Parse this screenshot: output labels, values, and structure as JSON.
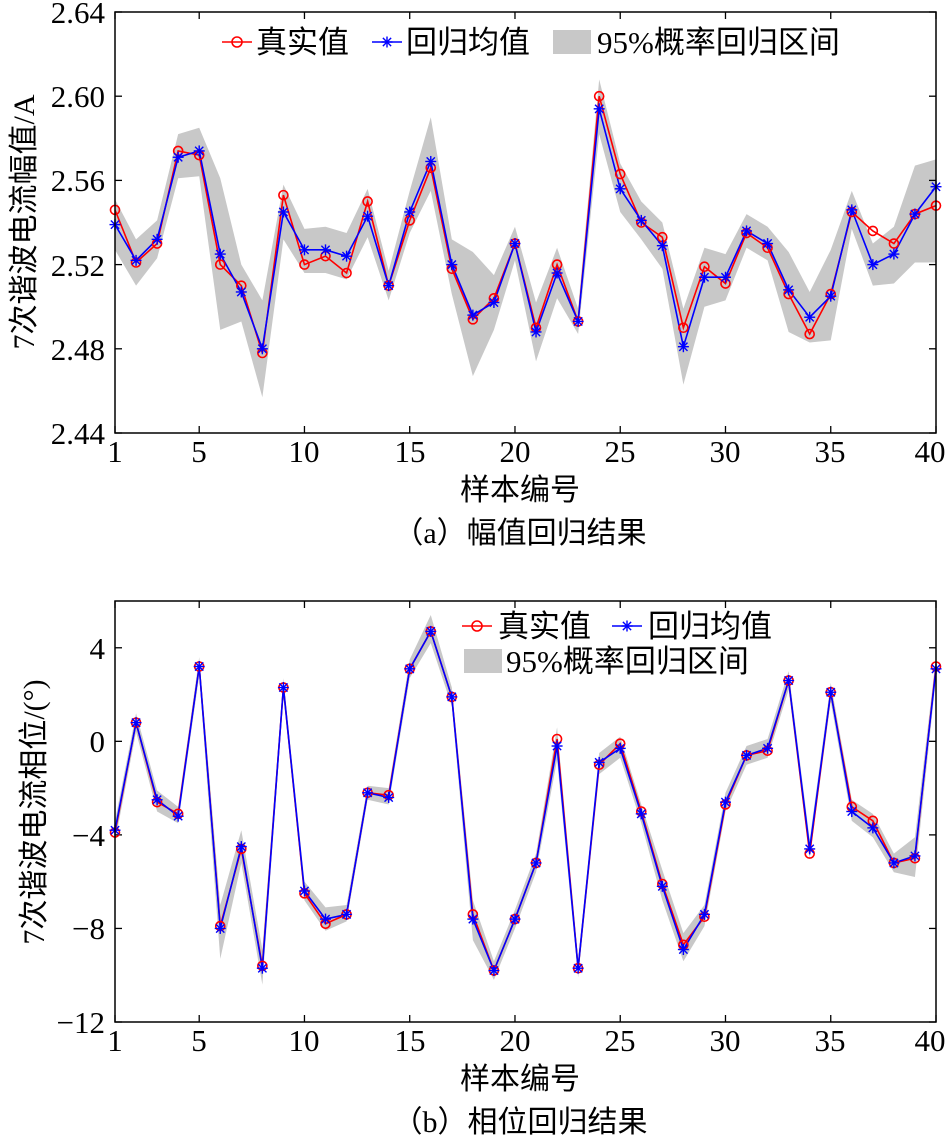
{
  "chart_data": [
    {
      "type": "line",
      "ylabel": "7次谐波电流幅值/A",
      "xlabel": "样本编号",
      "caption": "（a）幅值回归结果",
      "xlim": [
        1,
        40
      ],
      "ylim": [
        2.44,
        2.64
      ],
      "xticks": [
        1,
        5,
        10,
        15,
        20,
        25,
        30,
        35,
        40
      ],
      "yticks": [
        2.44,
        2.48,
        2.52,
        2.56,
        2.6,
        2.64
      ],
      "ytick_labels": [
        "2.44",
        "2.48",
        "2.52",
        "2.56",
        "2.60",
        "2.64"
      ],
      "xtick_labels": [
        "1",
        "5",
        "10",
        "15",
        "20",
        "25",
        "30",
        "35",
        "40"
      ],
      "legend": {
        "placement": "top",
        "entries": [
          "真实值",
          "回归均值",
          "95%概率回归区间"
        ]
      },
      "x": [
        1,
        2,
        3,
        4,
        5,
        6,
        7,
        8,
        9,
        10,
        11,
        12,
        13,
        14,
        15,
        16,
        17,
        18,
        19,
        20,
        21,
        22,
        23,
        24,
        25,
        26,
        27,
        28,
        29,
        30,
        31,
        32,
        33,
        34,
        35,
        36,
        37,
        38,
        39,
        40
      ],
      "series": [
        {
          "name": "真实值",
          "color": "#ff0000",
          "marker": "circle",
          "values": [
            2.546,
            2.521,
            2.53,
            2.574,
            2.572,
            2.52,
            2.51,
            2.478,
            2.553,
            2.52,
            2.524,
            2.516,
            2.55,
            2.51,
            2.541,
            2.566,
            2.518,
            2.494,
            2.504,
            2.53,
            2.49,
            2.52,
            2.493,
            2.6,
            2.563,
            2.54,
            2.533,
            2.49,
            2.519,
            2.511,
            2.535,
            2.528,
            2.506,
            2.487,
            2.506,
            2.545,
            2.536,
            2.53,
            2.544,
            2.548
          ]
        },
        {
          "name": "回归均值",
          "color": "#0000ff",
          "marker": "asterisk",
          "values": [
            2.539,
            2.522,
            2.532,
            2.571,
            2.574,
            2.525,
            2.507,
            2.48,
            2.545,
            2.527,
            2.527,
            2.524,
            2.543,
            2.51,
            2.545,
            2.569,
            2.52,
            2.496,
            2.502,
            2.53,
            2.488,
            2.516,
            2.493,
            2.594,
            2.556,
            2.541,
            2.529,
            2.481,
            2.514,
            2.514,
            2.536,
            2.53,
            2.508,
            2.495,
            2.505,
            2.546,
            2.52,
            2.525,
            2.544,
            2.557
          ]
        }
      ],
      "band": {
        "name": "95%概率回归区间",
        "color": "#c8c8c8",
        "lower": [
          2.527,
          2.51,
          2.523,
          2.561,
          2.562,
          2.489,
          2.493,
          2.457,
          2.532,
          2.516,
          2.516,
          2.513,
          2.533,
          2.503,
          2.535,
          2.555,
          2.506,
          2.467,
          2.489,
          2.522,
          2.474,
          2.504,
          2.487,
          2.582,
          2.545,
          2.532,
          2.518,
          2.463,
          2.5,
          2.503,
          2.528,
          2.522,
          2.488,
          2.483,
          2.484,
          2.537,
          2.51,
          2.511,
          2.521,
          2.521
        ],
        "upper": [
          2.551,
          2.532,
          2.541,
          2.582,
          2.585,
          2.561,
          2.52,
          2.503,
          2.558,
          2.537,
          2.538,
          2.535,
          2.556,
          2.517,
          2.555,
          2.59,
          2.532,
          2.526,
          2.515,
          2.538,
          2.502,
          2.528,
          2.499,
          2.608,
          2.568,
          2.55,
          2.54,
          2.499,
          2.528,
          2.525,
          2.544,
          2.538,
          2.526,
          2.507,
          2.527,
          2.555,
          2.53,
          2.538,
          2.567,
          2.57
        ]
      }
    },
    {
      "type": "line",
      "ylabel": "7次谐波电流相位/(°)",
      "xlabel": "样本编号",
      "caption": "（b）相位回归结果",
      "xlim": [
        1,
        40
      ],
      "ylim": [
        -12,
        6
      ],
      "xticks": [
        1,
        5,
        10,
        15,
        20,
        25,
        30,
        35,
        40
      ],
      "yticks": [
        -12,
        -8,
        -4,
        0,
        4
      ],
      "ytick_labels": [
        "−12",
        "−8",
        "−4",
        "0",
        "4"
      ],
      "xtick_labels": [
        "1",
        "5",
        "10",
        "15",
        "20",
        "25",
        "30",
        "35",
        "40"
      ],
      "legend": {
        "placement": "top-right",
        "entries": [
          "真实值",
          "回归均值",
          "95%概率回归区间"
        ]
      },
      "x": [
        1,
        2,
        3,
        4,
        5,
        6,
        7,
        8,
        9,
        10,
        11,
        12,
        13,
        14,
        15,
        16,
        17,
        18,
        19,
        20,
        21,
        22,
        23,
        24,
        25,
        26,
        27,
        28,
        29,
        30,
        31,
        32,
        33,
        34,
        35,
        36,
        37,
        38,
        39,
        40
      ],
      "series": [
        {
          "name": "真实值",
          "color": "#ff0000",
          "marker": "circle",
          "values": [
            -3.9,
            0.8,
            -2.6,
            -3.1,
            3.2,
            -7.9,
            -4.6,
            -9.6,
            2.3,
            -6.5,
            -7.8,
            -7.4,
            -2.2,
            -2.3,
            3.1,
            4.7,
            1.9,
            -7.4,
            -9.8,
            -7.6,
            -5.2,
            0.1,
            -9.7,
            -1.0,
            -0.1,
            -3.0,
            -6.1,
            -8.7,
            -7.5,
            -2.7,
            -0.6,
            -0.4,
            2.6,
            -4.8,
            2.1,
            -2.8,
            -3.4,
            -5.2,
            -5.0,
            3.2
          ]
        },
        {
          "name": "回归均值",
          "color": "#0000ff",
          "marker": "asterisk",
          "values": [
            -3.8,
            0.8,
            -2.5,
            -3.2,
            3.2,
            -8.0,
            -4.5,
            -9.7,
            2.3,
            -6.4,
            -7.6,
            -7.4,
            -2.2,
            -2.4,
            3.1,
            4.7,
            1.9,
            -7.6,
            -9.8,
            -7.6,
            -5.2,
            -0.2,
            -9.7,
            -0.9,
            -0.3,
            -3.1,
            -6.2,
            -8.9,
            -7.4,
            -2.6,
            -0.6,
            -0.3,
            2.6,
            -4.6,
            2.1,
            -3.0,
            -3.7,
            -5.2,
            -4.9,
            3.1
          ]
        }
      ],
      "band": {
        "name": "95%概率回归区间",
        "color": "#c8c8c8",
        "lower": [
          -4.3,
          0.4,
          -3.0,
          -3.5,
          2.8,
          -9.3,
          -5.2,
          -10.4,
          1.9,
          -6.8,
          -8.1,
          -7.7,
          -2.5,
          -2.7,
          2.7,
          4.2,
          1.5,
          -8.5,
          -10.2,
          -8.0,
          -5.6,
          -0.8,
          -10.1,
          -1.4,
          -0.7,
          -3.5,
          -6.8,
          -9.4,
          -7.9,
          -3.0,
          -1.0,
          -0.7,
          2.2,
          -5.0,
          1.7,
          -3.4,
          -4.1,
          -5.6,
          -5.8,
          2.7
        ],
        "upper": [
          -3.4,
          1.2,
          -2.1,
          -2.8,
          3.6,
          -7.0,
          -3.8,
          -8.9,
          2.7,
          -6.0,
          -7.1,
          -7.0,
          -1.9,
          -2.0,
          3.5,
          5.4,
          2.3,
          -6.8,
          -9.4,
          -7.2,
          -4.8,
          0.6,
          -9.3,
          -0.5,
          0.2,
          -2.7,
          -5.5,
          -8.2,
          -7.0,
          -2.2,
          -0.2,
          0.1,
          3.0,
          -4.2,
          2.5,
          -2.5,
          -3.1,
          -4.8,
          -4.1,
          3.6
        ]
      }
    }
  ]
}
